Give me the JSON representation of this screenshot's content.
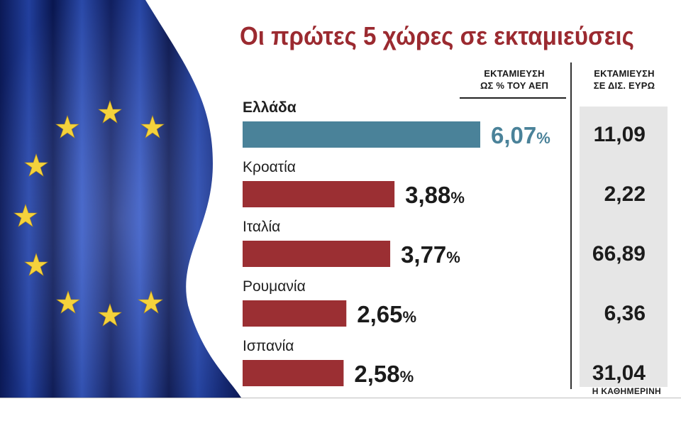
{
  "chart_data": {
    "type": "bar",
    "orientation": "horizontal",
    "title": "Οι πρώτες 5 χώρες σε εκταμιεύσεις",
    "categories": [
      "Ελλάδα",
      "Κροατία",
      "Ιταλία",
      "Ρουμανία",
      "Ισπανία"
    ],
    "columns": {
      "pct_header": [
        "ΕΚΤΑΜΙΕΥΣΗ",
        "ΩΣ % ΤΟΥ ΑΕΠ"
      ],
      "eur_header": [
        "ΕΚΤΑΜΙΕΥΣΗ",
        "ΣΕ ΔΙΣ. ΕΥΡΩ"
      ]
    },
    "series": [
      {
        "values": [
          6.07,
          3.88,
          3.77,
          2.65,
          2.58
        ],
        "labels": [
          "6,07",
          "3,88",
          "3,77",
          "2,65",
          "2,58"
        ],
        "unit_suffix": "%"
      }
    ],
    "eur_values": [
      11.09,
      2.22,
      66.89,
      6.36,
      31.04
    ],
    "eur_labels": [
      "11,09",
      "2,22",
      "66,89",
      "6,36",
      "31,04"
    ],
    "highlight_index": 0,
    "colors": {
      "highlight": "#4a8299",
      "default": "#9b2f33",
      "title": "#9b2a30",
      "value_highlight": "#4a8299",
      "value_default": "#1b1b1b"
    },
    "grid": false
  },
  "source": "Η ΚΑΘΗΜΕΡΙΝΗ"
}
